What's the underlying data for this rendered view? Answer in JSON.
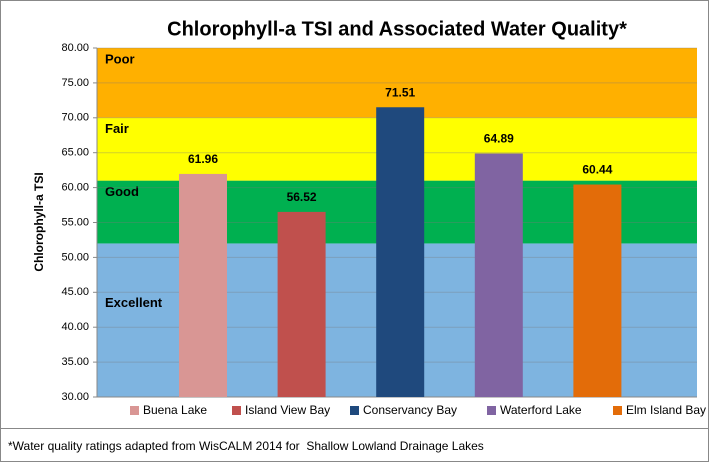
{
  "chart_data": {
    "type": "bar",
    "title": "Chlorophyll-a TSI and Associated Water Quality*",
    "y_label": "Chlorophyll-a TSI",
    "categories": [
      "Buena Lake",
      "Island View Bay",
      "Conservancy Bay",
      "Waterford Lake",
      "Elm Island Bay"
    ],
    "values": [
      61.96,
      56.52,
      71.51,
      64.89,
      60.44
    ],
    "colors": [
      "#d99694",
      "#c0504d",
      "#1f497d",
      "#8064a2",
      "#e36c09"
    ],
    "ylim": [
      30,
      80
    ],
    "yticks": [
      {
        "value": 30,
        "label": "30.00"
      },
      {
        "value": 35,
        "label": "35.00"
      },
      {
        "value": 40,
        "label": "40.00"
      },
      {
        "value": 45,
        "label": "45.00"
      },
      {
        "value": 50,
        "label": "50.00"
      },
      {
        "value": 55,
        "label": "55.00"
      },
      {
        "value": 60,
        "label": "60.00"
      },
      {
        "value": 65,
        "label": "65.00"
      },
      {
        "value": 70,
        "label": "70.00"
      },
      {
        "value": 75,
        "label": "75.00"
      },
      {
        "value": 80,
        "label": "80.00"
      }
    ],
    "grid": true,
    "legend": "bottom",
    "bands": [
      {
        "label": "Excellent",
        "from": 30,
        "to": 52,
        "color": "#7eb4e0"
      },
      {
        "label": "Good",
        "from": 52,
        "to": 61,
        "color": "#00b050"
      },
      {
        "label": "Fair",
        "from": 61,
        "to": 70,
        "color": "#ffff00"
      },
      {
        "label": "Poor",
        "from": 70,
        "to": 80,
        "color": "#ffb000"
      }
    ],
    "footnote": "*Water quality ratings adapted from WisCALM 2014 for  Shallow Lowland Drainage Lakes"
  }
}
